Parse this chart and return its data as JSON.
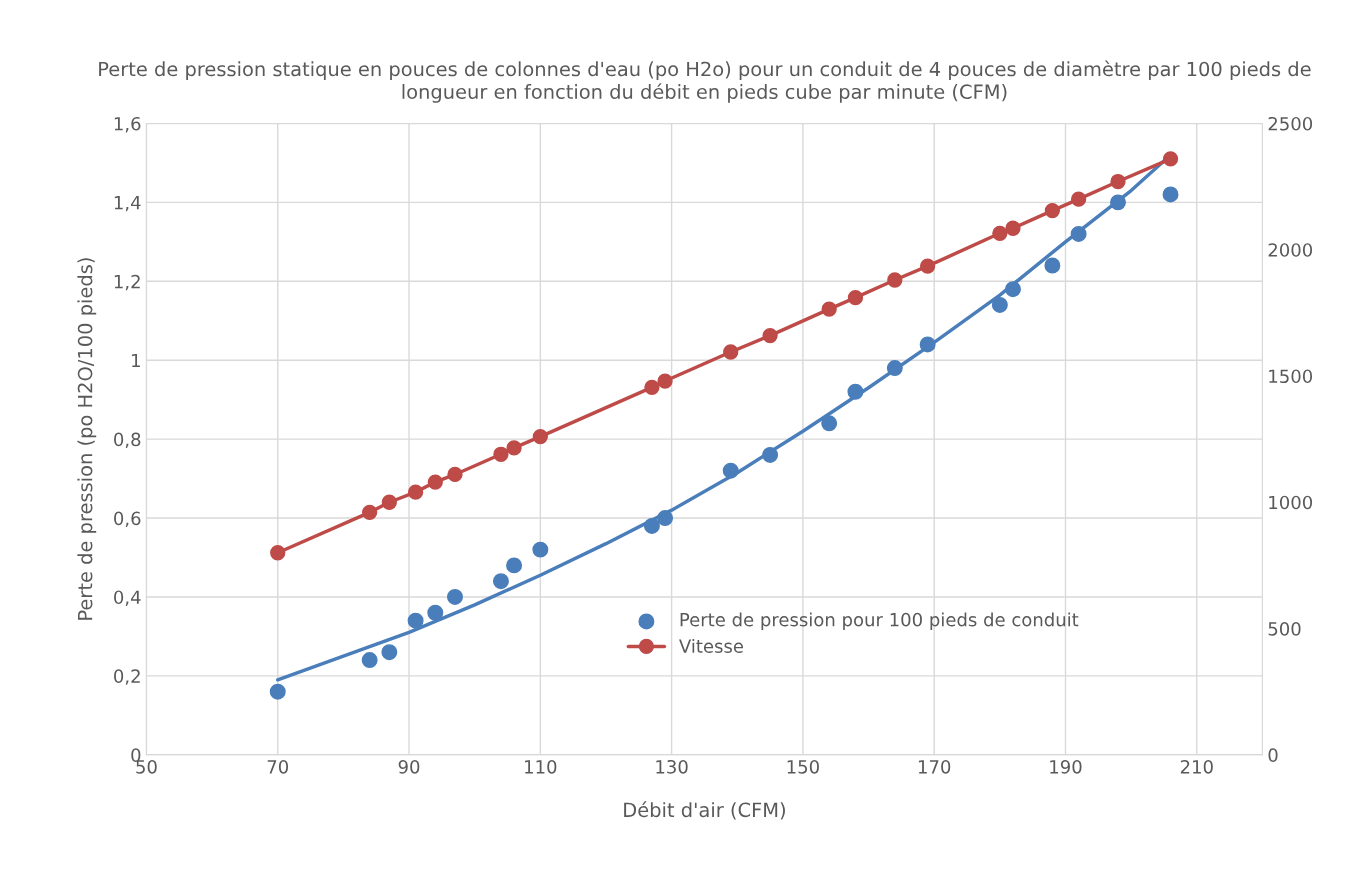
{
  "chart_data": {
    "type": "scatter",
    "title": "Perte de pression statique en pouces de colonnes d'eau (po H2o) pour un conduit de 4 pouces de diamètre par 100 pieds de longueur en fonction du débit en pieds cube par minute (CFM)",
    "xlabel": "Débit d'air (CFM)",
    "ylabel": "Perte de pression (po H2O/100 pieds)",
    "x": [
      70,
      84,
      87,
      91,
      94,
      97,
      104,
      106,
      110,
      127,
      129,
      139,
      145,
      154,
      158,
      164,
      169,
      180,
      182,
      188,
      192,
      198,
      206
    ],
    "series": [
      {
        "name": "Perte de pression pour 100 pieds de conduit",
        "color": "#4a7ebb",
        "marker": "circle",
        "values": [
          0.16,
          0.24,
          0.26,
          0.34,
          0.36,
          0.4,
          0.44,
          0.48,
          0.52,
          0.58,
          0.6,
          0.72,
          0.76,
          0.84,
          0.92,
          0.98,
          1.04,
          1.14,
          1.18,
          1.24,
          1.32,
          1.4,
          1.42
        ]
      },
      {
        "type": "line",
        "color": "#4a7ebb",
        "marker": "none",
        "x": [
          70,
          80,
          90,
          100,
          110,
          120,
          130,
          140,
          150,
          160,
          170,
          180,
          190,
          200,
          206
        ],
        "values": [
          0.19,
          0.25,
          0.31,
          0.38,
          0.455,
          0.535,
          0.62,
          0.715,
          0.82,
          0.93,
          1.045,
          1.165,
          1.3,
          1.43,
          1.52
        ]
      },
      {
        "name": "Vitesse",
        "type": "line",
        "axis": "y2",
        "color": "#be4b48",
        "marker": "circle",
        "values": [
          800,
          960,
          1000,
          1040,
          1080,
          1110,
          1190,
          1215,
          1260,
          1455,
          1480,
          1595,
          1660,
          1765,
          1810,
          1880,
          1935,
          2065,
          2085,
          2155,
          2200,
          2270,
          2360
        ]
      }
    ],
    "xlim": [
      50,
      220
    ],
    "xticks": [
      50,
      70,
      90,
      110,
      130,
      150,
      170,
      190,
      210
    ],
    "ylim": [
      0,
      1.6
    ],
    "yticks": [
      0,
      {
        "value": 0.2,
        "label": "0,2"
      },
      {
        "value": 0.4,
        "label": "0,4"
      },
      {
        "value": 0.6,
        "label": "0,6"
      },
      {
        "value": 0.8,
        "label": "0,8"
      },
      1,
      {
        "value": 1.2,
        "label": "1,2"
      },
      {
        "value": 1.4,
        "label": "1,4"
      },
      {
        "value": 1.6,
        "label": "1,6"
      }
    ],
    "y2lim": [
      0,
      2500
    ],
    "y2ticks": [
      0,
      500,
      1000,
      1500,
      2000,
      2500
    ],
    "grid": true,
    "legend": "bottom right"
  }
}
